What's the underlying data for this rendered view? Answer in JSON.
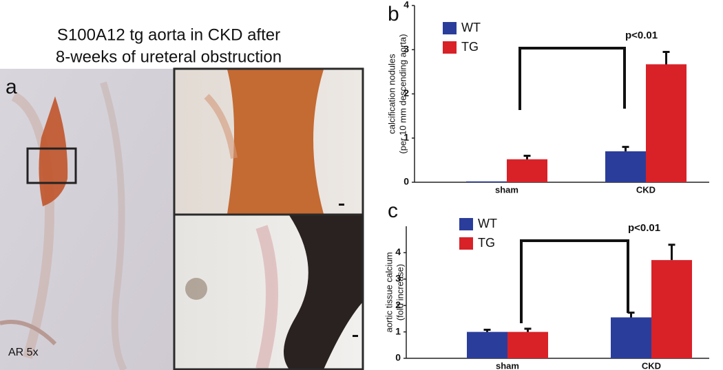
{
  "figure": {
    "title": [
      "S100A12 tg aorta in CKD after",
      "8-weeks of ureteral obstruction"
    ],
    "panel_label": "a",
    "magnification": "AR 5x"
  },
  "chart_data": [
    {
      "type": "bar",
      "panel_label": "b",
      "ylabel": [
        "calcification nodules",
        "(per 10 mm descending aorta)"
      ],
      "categories": [
        "sham",
        "CKD"
      ],
      "series": [
        {
          "name": "WT",
          "color": "#2b3d9b",
          "values": [
            0.02,
            0.7
          ],
          "errors": [
            0,
            0.1
          ]
        },
        {
          "name": "TG",
          "color": "#d92128",
          "values": [
            0.52,
            2.67
          ],
          "errors": [
            0.08,
            0.28
          ]
        }
      ],
      "ylim": [
        0,
        4
      ],
      "yticks": [
        0,
        1,
        2,
        3,
        4
      ],
      "annotation": "p<0.01"
    },
    {
      "type": "bar",
      "panel_label": "c",
      "ylabel": [
        "aortic tissue calcium",
        "(fold increase)"
      ],
      "categories": [
        "sham",
        "CKD"
      ],
      "series": [
        {
          "name": "WT",
          "color": "#2b3d9b",
          "values": [
            1.0,
            1.55
          ],
          "errors": [
            0.08,
            0.18
          ]
        },
        {
          "name": "TG",
          "color": "#d92128",
          "values": [
            1.0,
            3.72
          ],
          "errors": [
            0.12,
            0.58
          ]
        }
      ],
      "ylim": [
        0,
        5
      ],
      "yticks": [
        0,
        1,
        2,
        3,
        4
      ],
      "annotation": "p<0.01"
    }
  ]
}
